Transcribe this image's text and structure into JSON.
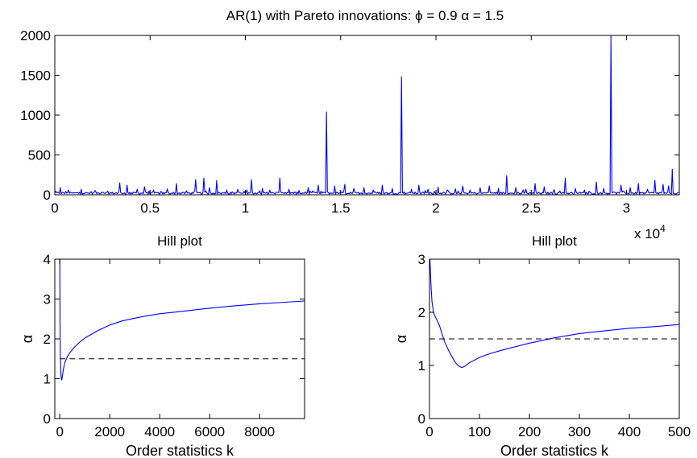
{
  "chart_data": [
    {
      "id": "top",
      "type": "line",
      "title": "AR(1) with Pareto innovations: ϕ = 0.9 α = 1.5",
      "xlabel": "",
      "ylabel": "",
      "xlim": [
        0,
        32768
      ],
      "ylim": [
        0,
        2000
      ],
      "xticks": [
        0,
        5000,
        10000,
        15000,
        20000,
        25000,
        30000
      ],
      "xtick_labels": [
        "0",
        "0.5",
        "1",
        "1.5",
        "2",
        "2.5",
        "3"
      ],
      "x_exponent_label": "x 10",
      "x_exponent_power": "4",
      "yticks": [
        0,
        500,
        1000,
        1500,
        2000
      ],
      "ytick_labels": [
        "0",
        "500",
        "1000",
        "1500",
        "2000"
      ],
      "grid": false,
      "spikes": [
        [
          300,
          90
        ],
        [
          700,
          60
        ],
        [
          1400,
          70
        ],
        [
          2100,
          55
        ],
        [
          2800,
          45
        ],
        [
          3400,
          150
        ],
        [
          3800,
          120
        ],
        [
          4300,
          70
        ],
        [
          4700,
          100
        ],
        [
          5200,
          60
        ],
        [
          5900,
          75
        ],
        [
          6400,
          140
        ],
        [
          6900,
          50
        ],
        [
          7400,
          190
        ],
        [
          7800,
          210
        ],
        [
          8100,
          90
        ],
        [
          8500,
          180
        ],
        [
          9000,
          60
        ],
        [
          9600,
          70
        ],
        [
          10300,
          190
        ],
        [
          10900,
          80
        ],
        [
          11300,
          60
        ],
        [
          11800,
          210
        ],
        [
          12300,
          70
        ],
        [
          12800,
          55
        ],
        [
          13300,
          90
        ],
        [
          13800,
          120
        ],
        [
          14250,
          1040
        ],
        [
          14700,
          110
        ],
        [
          15200,
          130
        ],
        [
          15700,
          80
        ],
        [
          16200,
          90
        ],
        [
          16700,
          60
        ],
        [
          17200,
          120
        ],
        [
          17700,
          80
        ],
        [
          18200,
          1480
        ],
        [
          18700,
          70
        ],
        [
          19100,
          120
        ],
        [
          19600,
          70
        ],
        [
          20100,
          95
        ],
        [
          20600,
          60
        ],
        [
          21000,
          75
        ],
        [
          21400,
          110
        ],
        [
          21800,
          60
        ],
        [
          22300,
          90
        ],
        [
          22800,
          110
        ],
        [
          23300,
          80
        ],
        [
          23700,
          240
        ],
        [
          24200,
          90
        ],
        [
          24700,
          70
        ],
        [
          25200,
          140
        ],
        [
          25700,
          100
        ],
        [
          26200,
          65
        ],
        [
          26800,
          210
        ],
        [
          27300,
          80
        ],
        [
          27800,
          60
        ],
        [
          28400,
          160
        ],
        [
          28800,
          80
        ],
        [
          29200,
          2000
        ],
        [
          29700,
          120
        ],
        [
          30200,
          90
        ],
        [
          30600,
          140
        ],
        [
          31100,
          70
        ],
        [
          31500,
          180
        ],
        [
          31900,
          130
        ],
        [
          32200,
          110
        ],
        [
          32400,
          320
        ]
      ]
    },
    {
      "id": "hill-left",
      "type": "line",
      "title": "Hill plot",
      "xlabel": "Order statistics k",
      "ylabel": "α",
      "xlim": [
        -200,
        9800
      ],
      "ylim": [
        0,
        4
      ],
      "xticks": [
        0,
        2000,
        4000,
        6000,
        8000
      ],
      "xtick_labels": [
        "0",
        "2000",
        "4000",
        "6000",
        "8000"
      ],
      "yticks": [
        0,
        1,
        2,
        3,
        4
      ],
      "ytick_labels": [
        "0",
        "1",
        "2",
        "3",
        "4"
      ],
      "grid": false,
      "reference_alpha": 1.5,
      "series": [
        {
          "x": [
            2,
            5,
            10,
            20,
            40,
            60,
            80,
            100,
            150,
            200,
            300,
            400,
            600,
            800,
            1000,
            1500,
            2000,
            2500,
            3000,
            3500,
            4000,
            5000,
            6000,
            7000,
            8000,
            9000,
            9800
          ],
          "y": [
            4.0,
            3.3,
            2.4,
            1.7,
            1.2,
            1.0,
            0.97,
            1.05,
            1.25,
            1.4,
            1.55,
            1.65,
            1.8,
            1.92,
            2.02,
            2.2,
            2.35,
            2.45,
            2.52,
            2.58,
            2.63,
            2.7,
            2.77,
            2.83,
            2.88,
            2.92,
            2.95
          ]
        }
      ]
    },
    {
      "id": "hill-right",
      "type": "line",
      "title": "Hill plot",
      "xlabel": "Order statistics k",
      "ylabel": "α",
      "xlim": [
        0,
        500
      ],
      "ylim": [
        0,
        3
      ],
      "xticks": [
        0,
        100,
        200,
        300,
        400,
        500
      ],
      "xtick_labels": [
        "0",
        "100",
        "200",
        "300",
        "400",
        "500"
      ],
      "yticks": [
        0,
        1,
        2,
        3
      ],
      "ytick_labels": [
        "0",
        "1",
        "2",
        "3"
      ],
      "grid": false,
      "reference_alpha": 1.5,
      "series": [
        {
          "x": [
            1,
            3,
            5,
            8,
            10,
            15,
            20,
            25,
            30,
            40,
            50,
            55,
            60,
            65,
            70,
            80,
            100,
            120,
            150,
            200,
            250,
            300,
            350,
            400,
            450,
            500
          ],
          "y": [
            3.0,
            2.5,
            2.2,
            2.0,
            1.95,
            1.85,
            1.75,
            1.6,
            1.45,
            1.25,
            1.08,
            1.02,
            0.98,
            0.96,
            0.98,
            1.05,
            1.15,
            1.22,
            1.3,
            1.42,
            1.52,
            1.6,
            1.65,
            1.7,
            1.73,
            1.77
          ]
        }
      ]
    }
  ]
}
